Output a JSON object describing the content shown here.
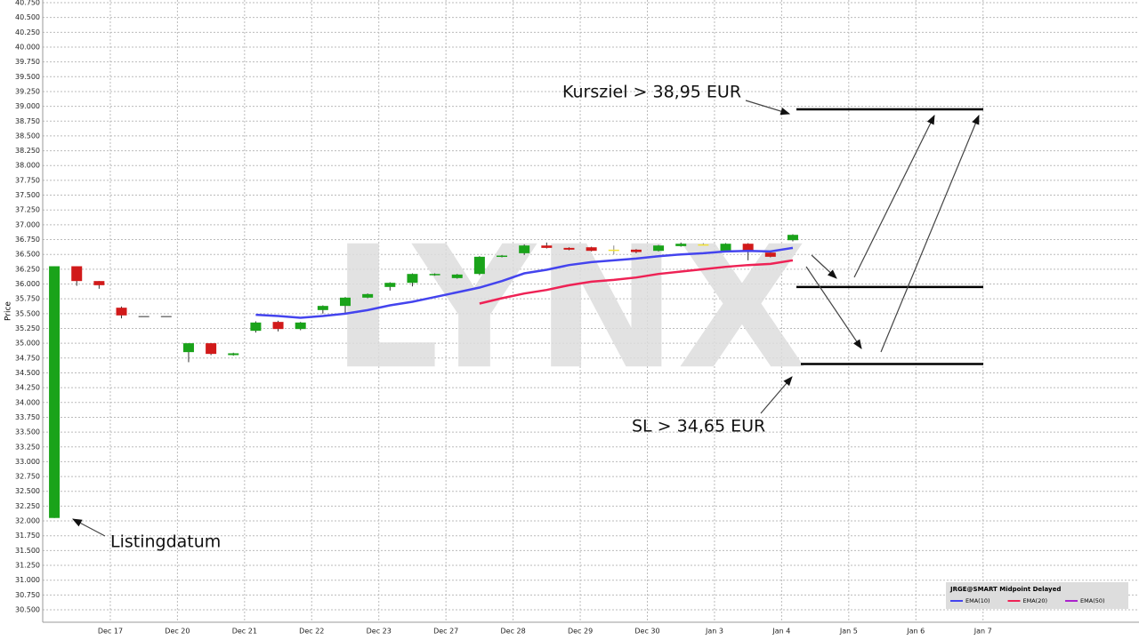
{
  "chart_data": {
    "type": "candlestick",
    "y_label": "Price",
    "watermark": "LYNX",
    "x": [
      0,
      1,
      2,
      3,
      4,
      5,
      6,
      7,
      8,
      9,
      10,
      11,
      12,
      13,
      14,
      15,
      16,
      17,
      18,
      19,
      20,
      21,
      22,
      23,
      24,
      25,
      26,
      27,
      28,
      29,
      30,
      31,
      32,
      33
    ],
    "open": [
      32.05,
      36.3,
      36.05,
      35.6,
      35.46,
      35.46,
      34.85,
      35.0,
      34.8,
      35.21,
      35.36,
      35.24,
      35.56,
      35.63,
      35.77,
      35.95,
      36.02,
      36.15,
      36.1,
      36.17,
      36.46,
      36.52,
      36.65,
      36.61,
      36.62,
      36.58,
      36.58,
      36.56,
      36.64,
      36.67,
      36.56,
      36.68,
      36.53,
      36.74
    ],
    "high": [
      36.3,
      36.3,
      36.05,
      35.62,
      35.46,
      35.46,
      35.0,
      35.0,
      34.84,
      35.37,
      35.38,
      35.36,
      35.64,
      35.78,
      35.84,
      36.03,
      36.18,
      36.18,
      36.17,
      36.47,
      36.49,
      36.67,
      36.7,
      36.62,
      36.63,
      36.65,
      36.59,
      36.66,
      36.7,
      36.69,
      36.69,
      36.69,
      36.54,
      36.84
    ],
    "low": [
      32.05,
      35.97,
      35.92,
      35.42,
      35.46,
      35.46,
      34.68,
      34.8,
      34.79,
      35.18,
      35.2,
      35.22,
      35.5,
      35.5,
      35.76,
      35.89,
      35.96,
      36.14,
      36.09,
      36.15,
      36.45,
      36.49,
      36.6,
      36.57,
      36.55,
      36.5,
      36.52,
      36.55,
      36.63,
      36.65,
      36.55,
      36.4,
      36.45,
      36.72
    ],
    "close": [
      36.3,
      36.05,
      35.98,
      35.47,
      35.46,
      35.46,
      35.0,
      34.82,
      34.83,
      35.35,
      35.24,
      35.35,
      35.63,
      35.77,
      35.83,
      36.02,
      36.17,
      36.17,
      36.16,
      36.46,
      36.48,
      36.65,
      36.61,
      36.58,
      36.56,
      36.58,
      36.54,
      36.65,
      36.68,
      36.67,
      36.68,
      36.56,
      36.46,
      36.83
    ],
    "up_color": "#1aa31a",
    "down_color": "#d11a1a",
    "doji_color": "#f2e233",
    "flat_color": "#777777",
    "series": [
      {
        "name": "EMA(10)",
        "color": "#4444ee",
        "values": [
          null,
          null,
          null,
          null,
          null,
          null,
          null,
          null,
          null,
          35.48,
          35.46,
          35.43,
          35.46,
          35.5,
          35.56,
          35.64,
          35.7,
          35.78,
          35.86,
          35.94,
          36.05,
          36.18,
          36.24,
          36.32,
          36.37,
          36.4,
          36.43,
          36.47,
          36.5,
          36.52,
          36.55,
          36.56,
          36.55,
          36.61
        ]
      },
      {
        "name": "EMA(20)",
        "color": "#ee2255",
        "values": [
          null,
          null,
          null,
          null,
          null,
          null,
          null,
          null,
          null,
          null,
          null,
          null,
          null,
          null,
          null,
          null,
          null,
          null,
          null,
          35.67,
          35.76,
          35.84,
          35.9,
          35.98,
          36.04,
          36.07,
          36.11,
          36.17,
          36.21,
          36.25,
          36.29,
          36.32,
          36.34,
          36.4
        ]
      },
      {
        "name": "EMA(50)",
        "color": "#aa22cc",
        "values": [
          null,
          null,
          null,
          null,
          null,
          null,
          null,
          null,
          null,
          null,
          null,
          null,
          null,
          null,
          null,
          null,
          null,
          null,
          null,
          null,
          null,
          null,
          null,
          null,
          null,
          null,
          null,
          null,
          null,
          null,
          null,
          null,
          null,
          null
        ]
      }
    ],
    "legend_title": "JRGE@SMART Midpoint Delayed",
    "levels": [
      38.95,
      35.95,
      34.65
    ],
    "annotations": [
      "Kursziel > 38,95 EUR",
      "SL > 34,65 EUR",
      "Listingdatum"
    ],
    "xlim": [
      -0.52,
      48.47
    ],
    "xticks": [
      {
        "value": 2.5,
        "label": "Dec 17"
      },
      {
        "value": 5.5,
        "label": "Dec 20"
      },
      {
        "value": 8.5,
        "label": "Dec 21"
      },
      {
        "value": 11.5,
        "label": "Dec 22"
      },
      {
        "value": 14.5,
        "label": "Dec 23"
      },
      {
        "value": 17.5,
        "label": "Dec 27"
      },
      {
        "value": 20.5,
        "label": "Dec 28"
      },
      {
        "value": 23.5,
        "label": "Dec 29"
      },
      {
        "value": 26.5,
        "label": "Dec 30"
      },
      {
        "value": 29.5,
        "label": "Jan 3"
      },
      {
        "value": 32.5,
        "label": "Jan 4"
      },
      {
        "value": 35.5,
        "label": "Jan 5"
      },
      {
        "value": 38.5,
        "label": "Jan 6"
      },
      {
        "value": 41.5,
        "label": "Jan 7"
      }
    ],
    "ylim": [
      30.29,
      40.795
    ],
    "yticks": [
      {
        "value": 30.5,
        "label": "30.500"
      },
      {
        "value": 30.75,
        "label": "30.750"
      },
      {
        "value": 31,
        "label": "31.000"
      },
      {
        "value": 31.25,
        "label": "31.250"
      },
      {
        "value": 31.5,
        "label": "31.500"
      },
      {
        "value": 31.75,
        "label": "31.750"
      },
      {
        "value": 32,
        "label": "32.000"
      },
      {
        "value": 32.25,
        "label": "32.250"
      },
      {
        "value": 32.5,
        "label": "32.500"
      },
      {
        "value": 32.75,
        "label": "32.750"
      },
      {
        "value": 33,
        "label": "33.000"
      },
      {
        "value": 33.25,
        "label": "33.250"
      },
      {
        "value": 33.5,
        "label": "33.500"
      },
      {
        "value": 33.75,
        "label": "33.750"
      },
      {
        "value": 34,
        "label": "34.000"
      },
      {
        "value": 34.25,
        "label": "34.250"
      },
      {
        "value": 34.5,
        "label": "34.500"
      },
      {
        "value": 34.75,
        "label": "34.750"
      },
      {
        "value": 35,
        "label": "35.000"
      },
      {
        "value": 35.25,
        "label": "35.250"
      },
      {
        "value": 35.5,
        "label": "35.500"
      },
      {
        "value": 35.75,
        "label": "35.750"
      },
      {
        "value": 36,
        "label": "36.000"
      },
      {
        "value": 36.25,
        "label": "36.250"
      },
      {
        "value": 36.5,
        "label": "36.500"
      },
      {
        "value": 36.75,
        "label": "36.750"
      },
      {
        "value": 37,
        "label": "37.000"
      },
      {
        "value": 37.25,
        "label": "37.250"
      },
      {
        "value": 37.5,
        "label": "37.500"
      },
      {
        "value": 37.75,
        "label": "37.750"
      },
      {
        "value": 38,
        "label": "38.000"
      },
      {
        "value": 38.25,
        "label": "38.250"
      },
      {
        "value": 38.5,
        "label": "38.500"
      },
      {
        "value": 38.75,
        "label": "38.750"
      },
      {
        "value": 39,
        "label": "39.000"
      },
      {
        "value": 39.25,
        "label": "39.250"
      },
      {
        "value": 39.5,
        "label": "39.500"
      },
      {
        "value": 39.75,
        "label": "39.750"
      },
      {
        "value": 40,
        "label": "40.000"
      },
      {
        "value": 40.25,
        "label": "40.250"
      },
      {
        "value": 40.5,
        "label": "40.500"
      },
      {
        "value": 40.75,
        "label": "40.750"
      }
    ],
    "grid": true
  }
}
